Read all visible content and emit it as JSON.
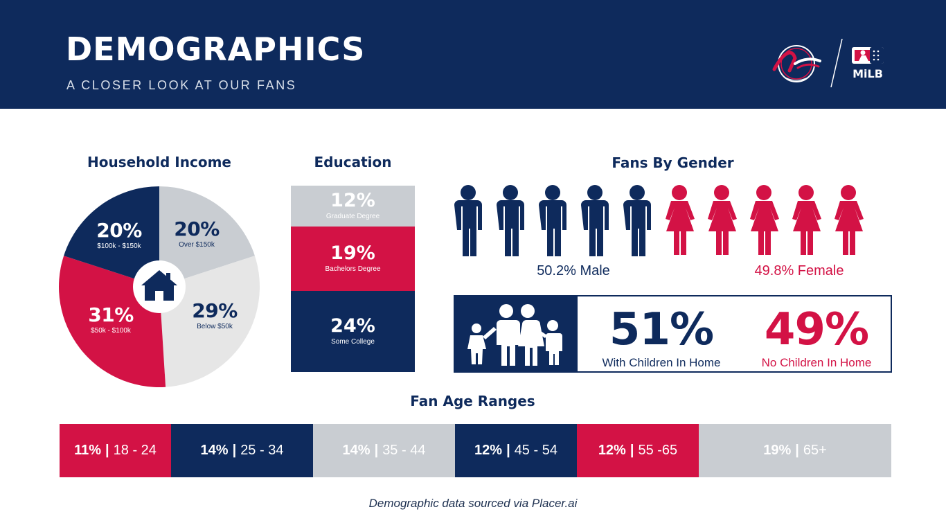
{
  "header": {
    "title": "DEMOGRAPHICS",
    "subtitle": "A CLOSER LOOK AT OUR FANS",
    "logos": [
      "reno-aces-logo",
      "milb-logo"
    ],
    "milb_text": "MiLB"
  },
  "colors": {
    "navy": "#0e2a5c",
    "red": "#d31245",
    "light_gray": "#c9cdd2",
    "lighter_gray": "#e6e6e6",
    "white": "#ffffff"
  },
  "chart_data": [
    {
      "id": "household_income",
      "type": "pie",
      "title": "Household Income",
      "slices": [
        {
          "label": "Over $150k",
          "value": 20,
          "color": "#c9cdd2",
          "text_color": "#0e2a5c"
        },
        {
          "label": "Below $50k",
          "value": 29,
          "color": "#e6e6e6",
          "text_color": "#0e2a5c"
        },
        {
          "label": "$50k - $100k",
          "value": 31,
          "color": "#d31245",
          "text_color": "#ffffff"
        },
        {
          "label": "$100k - $150k",
          "value": 20,
          "color": "#0e2a5c",
          "text_color": "#ffffff"
        }
      ],
      "center_icon": "house-icon"
    },
    {
      "id": "education",
      "type": "bar",
      "title": "Education",
      "categories": [
        "Graduate Degree",
        "Bachelors Degree",
        "Some College"
      ],
      "values": [
        12,
        19,
        24
      ],
      "colors": [
        "#c9cdd2",
        "#d31245",
        "#0e2a5c"
      ]
    },
    {
      "id": "fans_by_gender",
      "type": "bar",
      "title": "Fans By Gender",
      "categories": [
        "Male",
        "Female"
      ],
      "values": [
        50.2,
        49.8
      ],
      "labels": [
        "50.2% Male",
        "49.8% Female"
      ],
      "icons_per_group": 5,
      "colors": [
        "#0e2a5c",
        "#d31245"
      ]
    },
    {
      "id": "children_in_home",
      "type": "table",
      "categories": [
        "With Children In Home",
        "No Children In Home"
      ],
      "values": [
        51,
        49
      ],
      "value_labels": [
        "51%",
        "49%"
      ],
      "icon": "family-icon"
    },
    {
      "id": "fan_age_ranges",
      "type": "bar",
      "title": "Fan Age Ranges",
      "categories": [
        "18 - 24",
        "25 - 34",
        "35 - 44",
        "45 - 54",
        "55 -65",
        "65+"
      ],
      "values": [
        11,
        14,
        14,
        12,
        12,
        19
      ],
      "value_labels": [
        "11%",
        "14%",
        "14%",
        "12%",
        "12%",
        "19%"
      ],
      "colors": [
        "#d31245",
        "#0e2a5c",
        "#c9cdd2",
        "#0e2a5c",
        "#d31245",
        "#c9cdd2"
      ]
    }
  ],
  "labels": {
    "pie_pct": [
      "20%",
      "29%",
      "31%",
      "20%"
    ],
    "edu_pct": [
      "12%",
      "19%",
      "24%"
    ],
    "separator": "|"
  },
  "footnote": "Demographic data sourced via Placer.ai"
}
